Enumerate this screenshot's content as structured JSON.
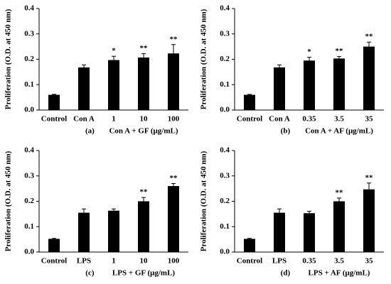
{
  "chart_data": [
    {
      "type": "bar",
      "panel": "(a)",
      "ylabel": "Proliferation (O.D. at 450 nm)",
      "xlabel": "Con A + GF (μg/mL)",
      "categories": [
        "Control",
        "Con A",
        "1",
        "10",
        "100"
      ],
      "values": [
        0.06,
        0.168,
        0.197,
        0.207,
        0.223
      ],
      "errors": [
        0.002,
        0.01,
        0.015,
        0.015,
        0.035
      ],
      "annotations": [
        null,
        null,
        "*",
        "**",
        "**"
      ],
      "color": "#000000",
      "ylim": [
        0,
        0.4
      ],
      "yticks": [
        {
          "value": 0,
          "label": "0.0"
        },
        0.1,
        0.2,
        0.3,
        0.4
      ]
    },
    {
      "type": "bar",
      "panel": "(b)",
      "ylabel": "Proliferation (O.D. at 450 nm)",
      "xlabel": "Con A + AF (μg/mL)",
      "categories": [
        "Control",
        "Con A",
        "0.35",
        "3.5",
        "35"
      ],
      "values": [
        0.06,
        0.168,
        0.195,
        0.203,
        0.25
      ],
      "errors": [
        0.002,
        0.01,
        0.013,
        0.008,
        0.018
      ],
      "annotations": [
        null,
        null,
        "*",
        "**",
        "**"
      ],
      "color": "#000000",
      "ylim": [
        0,
        0.4
      ],
      "yticks": [
        {
          "value": 0,
          "label": "0.0"
        },
        0.1,
        0.2,
        0.3,
        0.4
      ]
    },
    {
      "type": "bar",
      "panel": "(c)",
      "ylabel": "Proliferation (O.D. at 450 nm)",
      "xlabel": "LPS + GF (μg/mL)",
      "categories": [
        "Control",
        "LPS",
        "1",
        "10",
        "100"
      ],
      "values": [
        0.052,
        0.155,
        0.163,
        0.2,
        0.26
      ],
      "errors": [
        0.002,
        0.015,
        0.007,
        0.015,
        0.01
      ],
      "annotations": [
        null,
        null,
        null,
        "**",
        "**"
      ],
      "color": "#000000",
      "ylim": [
        0,
        0.4
      ],
      "yticks": [
        {
          "value": 0,
          "label": "0.0"
        },
        0.1,
        0.2,
        0.3,
        0.4
      ]
    },
    {
      "type": "bar",
      "panel": "(d)",
      "ylabel": "Proliferation (O.D. at 450 nm)",
      "xlabel": "LPS + AF (μg/mL)",
      "categories": [
        "Control",
        "LPS",
        "0.35",
        "3.5",
        "35"
      ],
      "values": [
        0.052,
        0.155,
        0.153,
        0.2,
        0.247
      ],
      "errors": [
        0.002,
        0.015,
        0.008,
        0.013,
        0.025
      ],
      "annotations": [
        null,
        null,
        null,
        "**",
        "**"
      ],
      "color": "#000000",
      "ylim": [
        0,
        0.4
      ],
      "yticks": [
        {
          "value": 0,
          "label": "0.0"
        },
        0.1,
        0.2,
        0.3,
        0.4
      ]
    }
  ]
}
